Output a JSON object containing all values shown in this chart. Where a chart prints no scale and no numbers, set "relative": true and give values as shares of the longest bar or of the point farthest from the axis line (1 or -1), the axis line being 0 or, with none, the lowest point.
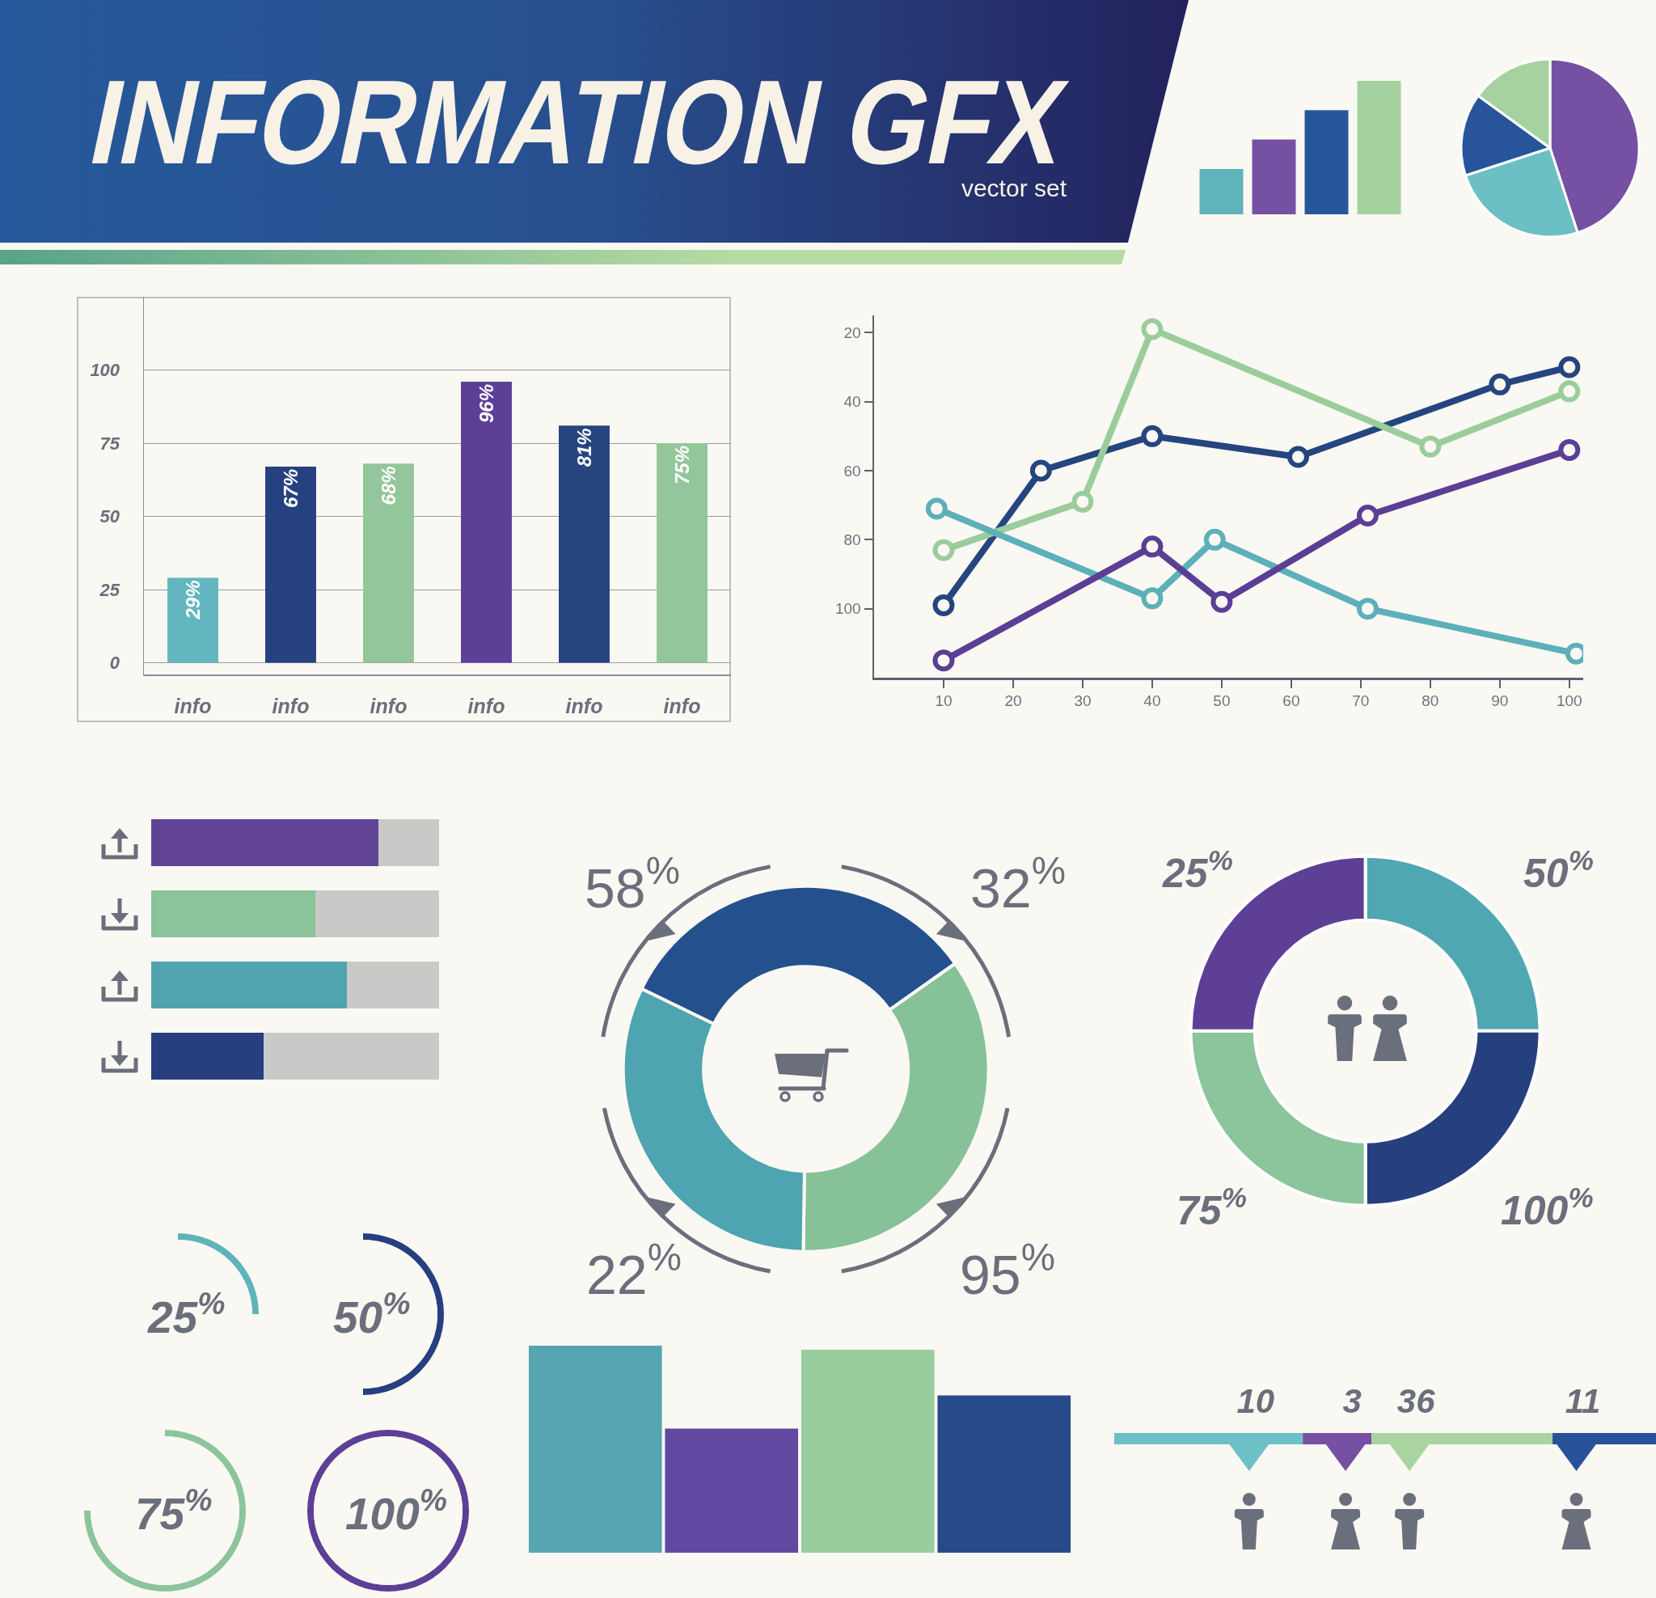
{
  "chart_data": [
    {
      "type": "other",
      "title": "INFORMATION GFX",
      "subtitle": "vector set"
    },
    {
      "type": "bar",
      "relative": true,
      "categories": [
        null,
        null,
        null,
        null
      ],
      "values": [
        0.34,
        0.56,
        0.78,
        1
      ],
      "colors": [
        "#5fb3bb",
        "#7650a3",
        "#26569a",
        "#a3d19f"
      ]
    },
    {
      "type": "pie",
      "categories": [
        null,
        null,
        null,
        null
      ],
      "values": [
        45,
        25,
        15,
        15
      ],
      "colors": [
        "#7650a3",
        "#6cbfc3",
        "#27549a",
        "#a6d2a0"
      ]
    },
    {
      "type": "bar",
      "categories": [
        "info",
        "info",
        "info",
        "info",
        "info",
        "info"
      ],
      "values": [
        29,
        67,
        68,
        96,
        81,
        75
      ],
      "colors": [
        "#63b6bf",
        "#26417f",
        "#93c69a",
        "#5c3f96",
        "#26457f",
        "#93c69a"
      ],
      "value_labels": [
        "29%",
        "67%",
        "68%",
        "96%",
        "81%",
        "75%"
      ],
      "ylim": [
        -4,
        125
      ],
      "yticks": [
        0,
        25,
        50,
        75,
        100
      ],
      "grid": "y"
    },
    {
      "type": "line",
      "xlim": [
        0,
        102
      ],
      "xticks": [
        10,
        20,
        30,
        40,
        50,
        60,
        70,
        80,
        90,
        100
      ],
      "ylim": [
        120,
        15
      ],
      "yticks": [
        20,
        40,
        60,
        80,
        100
      ],
      "marker": "circle",
      "series": [
        {
          "color": "#25457f",
          "x": [
            10,
            24,
            40,
            61,
            90,
            100
          ],
          "values": [
            99,
            60,
            50,
            56,
            35,
            30
          ]
        },
        {
          "color": "#9bcd9c",
          "x": [
            10,
            30,
            40,
            80,
            100
          ],
          "values": [
            83,
            69,
            19,
            53,
            37
          ]
        },
        {
          "color": "#5db0b9",
          "x": [
            9,
            40,
            49,
            71,
            101
          ],
          "values": [
            71,
            97,
            80,
            100,
            113
          ]
        },
        {
          "color": "#5b3e95",
          "x": [
            10,
            40,
            50,
            71,
            100
          ],
          "values": [
            115,
            82,
            98,
            73,
            54
          ]
        }
      ]
    },
    {
      "type": "bar",
      "orientation": "horizontal",
      "stacked": true,
      "relative": true,
      "categories": [
        null,
        null,
        null,
        null
      ],
      "series": [
        {
          "colors": [
            "#614396",
            "#8bc39b",
            "#4fa4b0",
            "#273f80"
          ],
          "values": [
            0.79,
            0.57,
            0.68,
            0.39
          ]
        },
        {
          "color": "#c9cac8",
          "values": [
            0.21,
            0.43,
            0.32,
            0.61
          ]
        }
      ]
    },
    {
      "type": "donut",
      "categories": [
        null,
        null,
        null
      ],
      "values": [
        33,
        35,
        32
      ],
      "colors": [
        "#25508e",
        "#86c198",
        "#4ea4b0"
      ],
      "annotations": [
        "58$^{%}$",
        "32$^{%}$",
        "22$^{%}$",
        "95$^{%}$"
      ]
    },
    {
      "type": "donut",
      "categories": [
        null,
        null,
        null,
        null
      ],
      "values": [
        25,
        25,
        25,
        25
      ],
      "colors": [
        "#4fa7b2",
        "#263f7e",
        "#8cc49b",
        "#5e3f96"
      ],
      "annotations": [
        "25$^{%}$",
        "50$^{%}$",
        "75$^{%}$",
        "100$^{%}$"
      ]
    },
    {
      "type": "pie",
      "categories": [
        null
      ],
      "values": [
        25
      ],
      "colors": [
        "#5fb3bb"
      ],
      "value_labels": [
        "25$^{%}$"
      ]
    },
    {
      "type": "pie",
      "categories": [
        null
      ],
      "values": [
        50
      ],
      "colors": [
        "#263f80"
      ],
      "value_labels": [
        "50$^{%}$"
      ]
    },
    {
      "type": "pie",
      "categories": [
        null
      ],
      "values": [
        75
      ],
      "colors": [
        "#8cc49b"
      ],
      "value_labels": [
        "75$^{%}$"
      ]
    },
    {
      "type": "pie",
      "categories": [
        null
      ],
      "values": [
        100
      ],
      "colors": [
        "#5c3f96"
      ],
      "value_labels": [
        "100$^{%}$"
      ]
    },
    {
      "type": "bar",
      "relative": true,
      "categories": [
        null,
        null,
        null,
        null
      ],
      "values": [
        1,
        0.6,
        0.98,
        0.76
      ],
      "colors": [
        "#55a5b2",
        "#6148a0",
        "#99cd9e",
        "#274b8a"
      ]
    },
    {
      "type": "other",
      "categories": [
        null,
        null,
        null,
        null
      ],
      "values": [
        10,
        3,
        36,
        11
      ],
      "colors": [
        "#6cc0c6",
        "#7650a3",
        "#a9d4a0",
        "#27529a"
      ],
      "data_labels": true
    }
  ]
}
